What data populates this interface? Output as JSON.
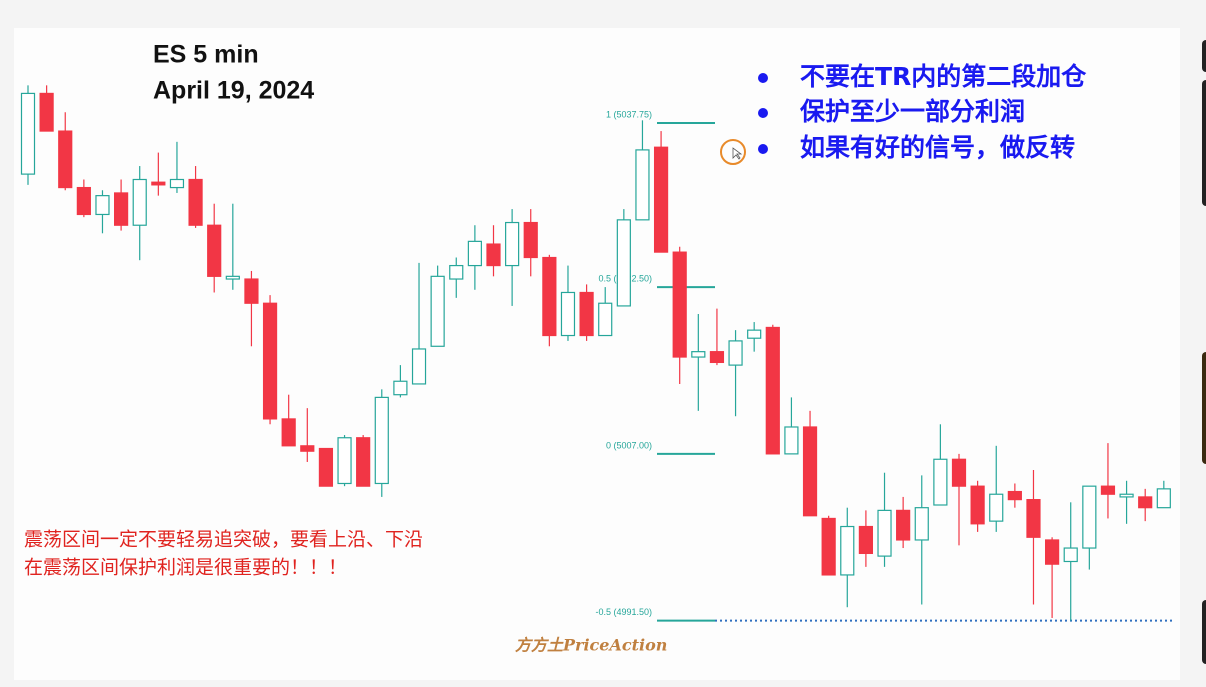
{
  "chart_data": {
    "type": "candlestick",
    "title": [
      "ES 5 min",
      "April 19, 2024"
    ],
    "notes": [
      "不要在TR内的第二段加仓",
      "保护至少一部分利润",
      "如果有好的信号，做反转"
    ],
    "annotations": [
      "震荡区间一定不要轻易追突破，要看上沿、下沿",
      "在震荡区间保护利润是很重要的！！！"
    ],
    "watermark": "方方土PriceAction",
    "up_color": "#26a69a",
    "down_color": "#f23645",
    "ylim": [
      4989.75,
      5042.75
    ],
    "fib_levels": [
      {
        "label": "1 (5037.75)",
        "value": 5037.75
      },
      {
        "label": "0.5 (5022.50)",
        "value": 5022.5
      },
      {
        "label": "0 (5007.00)",
        "value": 5007
      },
      {
        "label": "-0.5 (4991.50)",
        "value": 4991.5
      }
    ],
    "open": [
      5033,
      5040.5,
      5037,
      5031.75,
      5029.25,
      5031.25,
      5028.25,
      5032.25,
      5031.75,
      5032.5,
      5028.25,
      5023.25,
      5023.25,
      5021,
      5010.25,
      5007.75,
      5007.5,
      5004.25,
      5008.5,
      5004.25,
      5012.5,
      5013.5,
      5017,
      5023.25,
      5024.5,
      5026.5,
      5024.5,
      5028.5,
      5025.25,
      5018,
      5022,
      5018,
      5020.75,
      5028.75,
      5035.5,
      5025.75,
      5016,
      5016.5,
      5015.25,
      5017.75,
      5018.75,
      5007,
      5009.5,
      5001,
      4995.75,
      5000.25,
      4997.5,
      5001.75,
      4999,
      5002.25,
      5006.5,
      5004,
      5000.75,
      5003.5,
      5002.75,
      4999,
      4997,
      4998.25,
      5004,
      5003,
      5003,
      5002
    ],
    "high": [
      5041.25,
      5041.25,
      5038.75,
      5032.5,
      5031.5,
      5032.5,
      5033.75,
      5035,
      5036,
      5033.75,
      5030.25,
      5030.25,
      5024,
      5021.75,
      5012.5,
      5011.25,
      5007.5,
      5008.75,
      5008.75,
      5013,
      5015.25,
      5024.75,
      5024.5,
      5025.25,
      5028.25,
      5028.25,
      5029.75,
      5029.75,
      5025.5,
      5024.5,
      5022.75,
      5022.5,
      5029.75,
      5038,
      5037,
      5026.25,
      5020,
      5020.5,
      5018.5,
      5019.25,
      5019,
      5012.25,
      5011,
      5001.25,
      5002,
      5001.75,
      5005.25,
      5003,
      5005,
      5009.75,
      5007,
      5004.5,
      5007.75,
      5004.25,
      5005.5,
      4999.25,
      5002.5,
      5004,
      5008,
      5004.5,
      5003.75,
      5004.5
    ],
    "low": [
      5032,
      5037,
      5031.5,
      5029,
      5027.5,
      5027.75,
      5025,
      5031,
      5031.25,
      5028,
      5022,
      5022.25,
      5017,
      5009.75,
      5007.75,
      5006.25,
      5004,
      5004,
      5004,
      5003,
      5012.25,
      5013.5,
      5017,
      5021.5,
      5022.25,
      5023.5,
      5020.75,
      5023.5,
      5017,
      5017.5,
      5017.5,
      5018,
      5020.75,
      5028.75,
      5025.75,
      5013.5,
      5011,
      5015.25,
      5010.5,
      5016.5,
      5007,
      5007,
      5001.25,
      4995.75,
      4992.75,
      4996.5,
      4996.5,
      4998.25,
      4993,
      5002.25,
      4998.5,
      4999.75,
      4999.75,
      5002,
      4993,
      4991.75,
      4991.5,
      4996.25,
      5001,
      5000.5,
      5000.75,
      5002
    ],
    "close": [
      5040.5,
      5037,
      5031.75,
      5029.25,
      5031,
      5028.25,
      5032.5,
      5032,
      5032.5,
      5028.25,
      5023.5,
      5023.5,
      5021,
      5010.25,
      5007.75,
      5007.25,
      5004,
      5008.5,
      5004,
      5012.25,
      5013.75,
      5016.75,
      5023.5,
      5024.5,
      5026.75,
      5024.5,
      5028.5,
      5025.25,
      5018,
      5022,
      5018,
      5021,
      5028.75,
      5035.25,
      5025.75,
      5016,
      5016.5,
      5015.5,
      5017.5,
      5018.5,
      5007,
      5009.5,
      5001.25,
      4995.75,
      5000.25,
      4997.75,
      5001.75,
      4999,
      5002,
      5006.5,
      5004,
      5000.5,
      5003.25,
      5002.75,
      4999.25,
      4996.75,
      4998.25,
      5004,
      5003.25,
      5003.25,
      5002,
      5003.75
    ]
  }
}
